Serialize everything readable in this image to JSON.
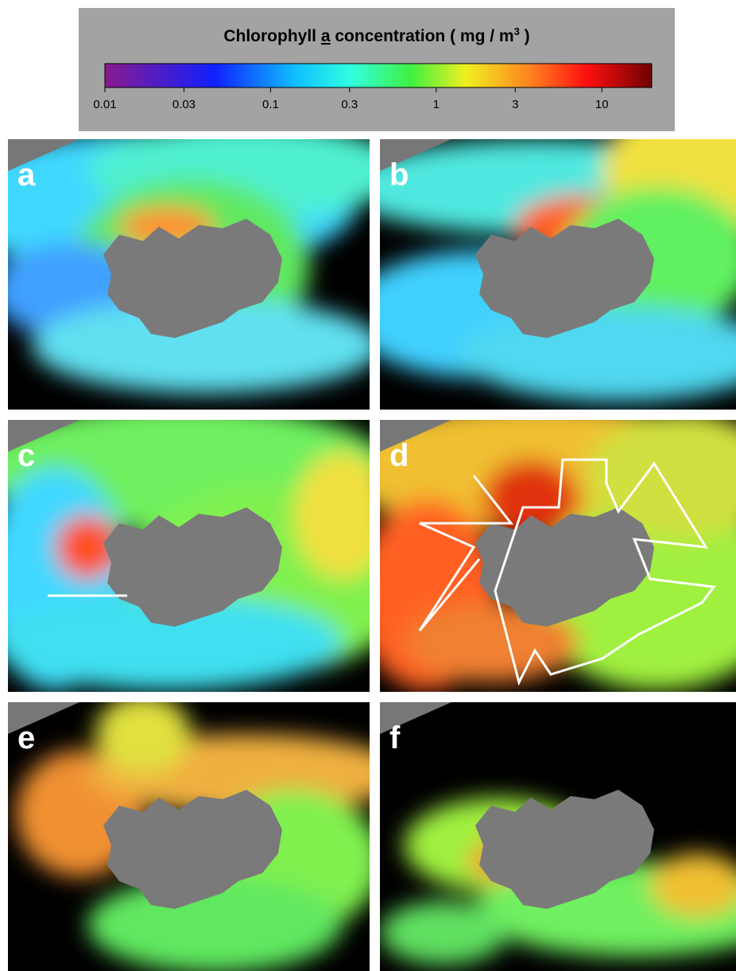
{
  "colorbar": {
    "title_parts": [
      "Chlorophyll ",
      "a",
      " concentration ( mg / m",
      "3",
      " )"
    ],
    "ticks": [
      0.01,
      0.03,
      0.1,
      0.3,
      1,
      3,
      10
    ],
    "lim": [
      0.01,
      20
    ],
    "log": true
  },
  "panels": [
    {
      "label": "a"
    },
    {
      "label": "b"
    },
    {
      "label": "c"
    },
    {
      "label": "d"
    },
    {
      "label": "e"
    },
    {
      "label": "f"
    }
  ]
}
